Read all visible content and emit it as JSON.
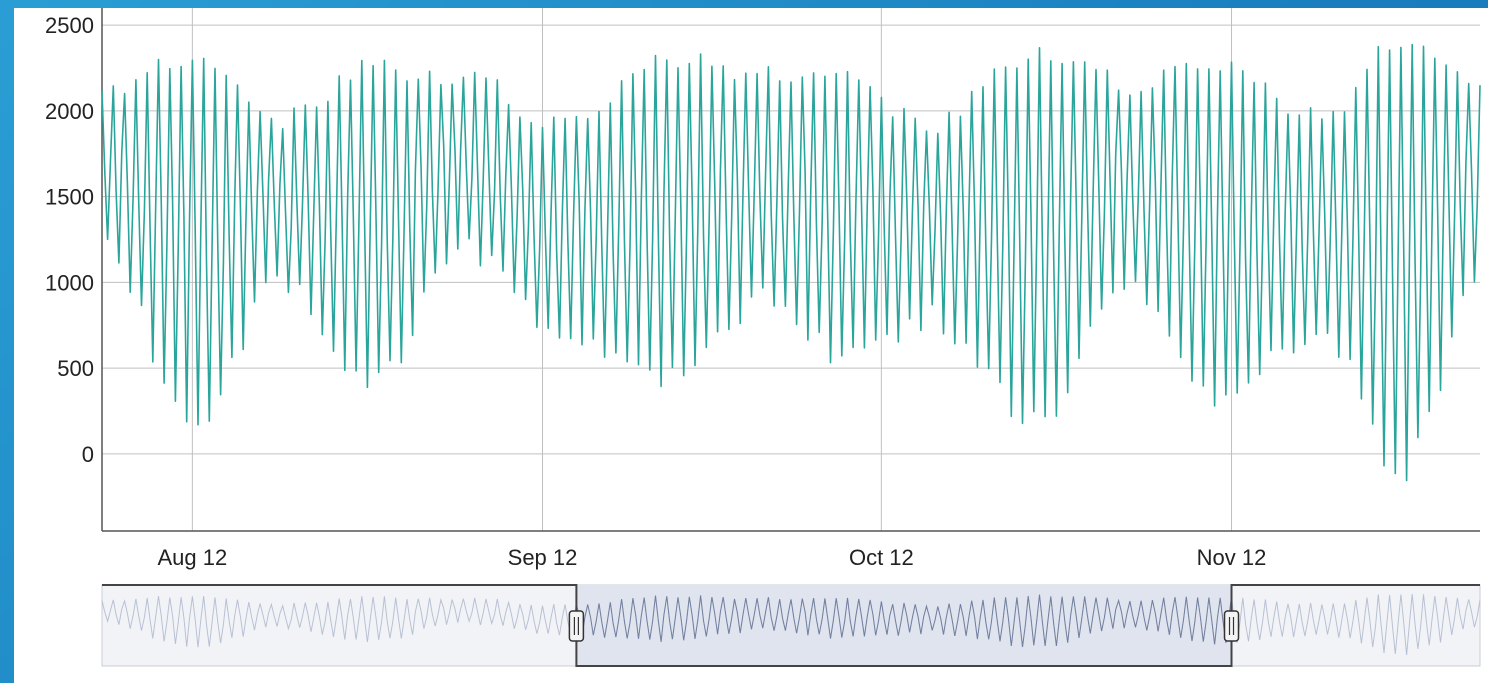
{
  "chart_data": {
    "type": "line",
    "title": "",
    "xlabel": "",
    "ylabel": "",
    "ylim": [
      -450,
      2600
    ],
    "y_ticks": [
      "2500",
      "2000",
      "1500",
      "1000",
      "500",
      "0"
    ],
    "x_tick_labels": [
      "Aug 12",
      "Sep 12",
      "Oct 12",
      "Nov 12"
    ],
    "x_tick_dates": [
      "2012-08-12",
      "2012-09-12",
      "2012-10-12",
      "2012-11-12"
    ],
    "x_start": "2012-08-04",
    "x_end": "2012-12-04",
    "grid": true,
    "line_color": "#2aa59b",
    "series": [
      {
        "name": "",
        "x_start": "2012-08-04",
        "sampling": "every 6 hours",
        "waveform": {
          "band_upper_center": [
            [
              "2012-08-04",
              2120
            ],
            [
              "2012-08-12",
              2300
            ],
            [
              "2012-08-20",
              1950
            ],
            [
              "2012-08-28",
              2250
            ],
            [
              "2012-09-05",
              2200
            ],
            [
              "2012-09-14",
              1900
            ],
            [
              "2012-09-23",
              2300
            ],
            [
              "2012-10-02",
              2200
            ],
            [
              "2012-10-09",
              2200
            ],
            [
              "2012-10-16",
              1900
            ],
            [
              "2012-10-26",
              2350
            ],
            [
              "2012-11-03",
              2150
            ],
            [
              "2012-11-11",
              2250
            ],
            [
              "2012-11-20",
              1950
            ],
            [
              "2012-11-27",
              2400
            ],
            [
              "2012-12-04",
              2150
            ]
          ],
          "band_lower_center": [
            [
              "2012-08-04",
              1200
            ],
            [
              "2012-08-12",
              200
            ],
            [
              "2012-08-20",
              1000
            ],
            [
              "2012-08-28",
              400
            ],
            [
              "2012-09-05",
              1200
            ],
            [
              "2012-09-14",
              700
            ],
            [
              "2012-09-23",
              450
            ],
            [
              "2012-10-02",
              900
            ],
            [
              "2012-10-09",
              550
            ],
            [
              "2012-10-16",
              800
            ],
            [
              "2012-10-26",
              200
            ],
            [
              "2012-11-03",
              1000
            ],
            [
              "2012-11-11",
              350
            ],
            [
              "2012-11-20",
              700
            ],
            [
              "2012-11-27",
              -100
            ],
            [
              "2012-12-04",
              1000
            ]
          ]
        }
      }
    ]
  },
  "navigator": {
    "range_start": "2012-09-15",
    "range_end": "2012-11-12",
    "selected_color": "#7380a0",
    "unselected_color": "#b8c1d4"
  }
}
